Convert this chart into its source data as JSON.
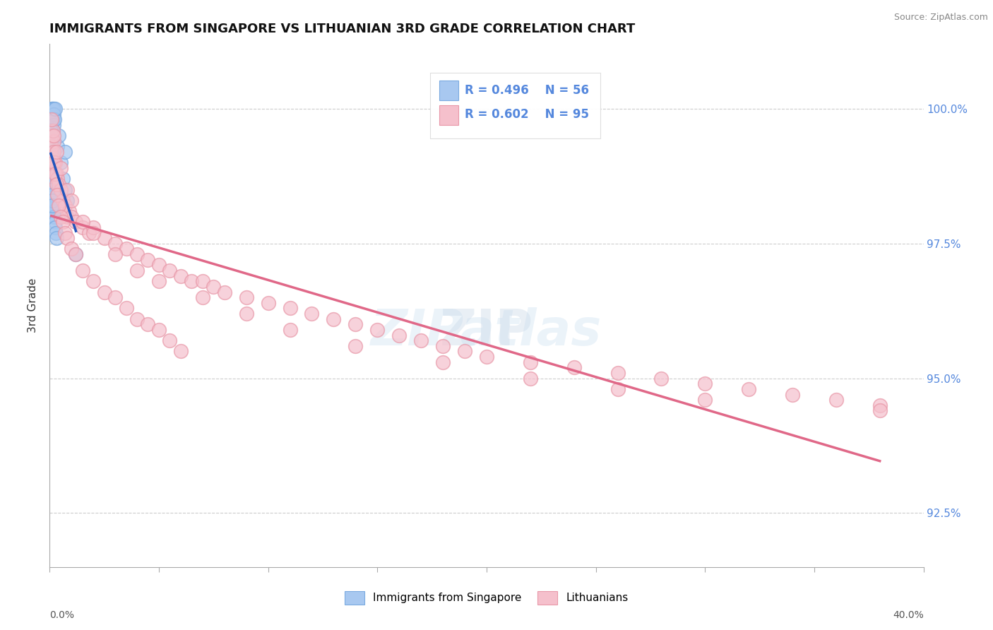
{
  "title": "IMMIGRANTS FROM SINGAPORE VS LITHUANIAN 3RD GRADE CORRELATION CHART",
  "source": "Source: ZipAtlas.com",
  "ylabel": "3rd Grade",
  "legend_label_blue": "Immigrants from Singapore",
  "legend_label_pink": "Lithuanians",
  "r_blue": 0.496,
  "n_blue": 56,
  "r_pink": 0.602,
  "n_pink": 95,
  "x_min": 0.0,
  "x_max": 40.0,
  "y_min": 91.5,
  "y_max": 101.2,
  "y_ticks": [
    92.5,
    95.0,
    97.5,
    100.0
  ],
  "color_blue_fill": "#a8c8f0",
  "color_blue_edge": "#7aaae0",
  "color_pink_fill": "#f5c0cc",
  "color_pink_edge": "#e898a8",
  "color_blue_line": "#2255bb",
  "color_pink_line": "#e06888",
  "tick_color": "#aaaaaa",
  "grid_color": "#cccccc",
  "right_tick_color": "#5588dd",
  "background_color": "#ffffff",
  "blue_x": [
    0.05,
    0.08,
    0.1,
    0.1,
    0.12,
    0.13,
    0.15,
    0.15,
    0.15,
    0.18,
    0.2,
    0.2,
    0.22,
    0.25,
    0.05,
    0.06,
    0.07,
    0.08,
    0.09,
    0.1,
    0.11,
    0.12,
    0.13,
    0.14,
    0.15,
    0.16,
    0.17,
    0.18,
    0.19,
    0.2,
    0.22,
    0.24,
    0.26,
    0.28,
    0.3,
    0.35,
    0.4,
    0.5,
    0.6,
    0.7,
    0.8,
    0.05,
    0.05,
    0.06,
    0.06,
    0.07,
    0.07,
    0.08,
    0.08,
    0.09,
    0.1,
    0.11,
    0.12,
    0.13,
    0.7,
    1.2
  ],
  "blue_y": [
    99.9,
    99.8,
    100.0,
    99.7,
    99.9,
    100.0,
    100.0,
    99.8,
    99.6,
    100.0,
    99.9,
    99.7,
    99.8,
    100.0,
    99.5,
    99.4,
    99.3,
    99.2,
    99.1,
    99.0,
    98.9,
    98.8,
    98.7,
    98.6,
    98.5,
    98.4,
    98.3,
    98.2,
    98.1,
    98.0,
    98.0,
    97.9,
    97.8,
    97.7,
    97.6,
    99.3,
    99.5,
    99.0,
    98.7,
    98.5,
    98.3,
    99.6,
    99.5,
    99.4,
    99.3,
    99.1,
    99.0,
    98.8,
    98.7,
    98.6,
    98.5,
    98.4,
    98.3,
    98.2,
    99.2,
    97.3
  ],
  "pink_x": [
    0.08,
    0.1,
    0.12,
    0.15,
    0.18,
    0.2,
    0.25,
    0.3,
    0.35,
    0.4,
    0.5,
    0.6,
    0.7,
    0.8,
    0.9,
    1.0,
    1.2,
    1.5,
    1.8,
    2.0,
    2.5,
    3.0,
    3.5,
    4.0,
    4.5,
    5.0,
    5.5,
    6.0,
    6.5,
    7.0,
    7.5,
    8.0,
    9.0,
    10.0,
    11.0,
    12.0,
    13.0,
    14.0,
    15.0,
    16.0,
    17.0,
    18.0,
    19.0,
    20.0,
    22.0,
    24.0,
    26.0,
    28.0,
    30.0,
    32.0,
    34.0,
    36.0,
    38.0,
    0.15,
    0.2,
    0.25,
    0.3,
    0.35,
    0.4,
    0.5,
    0.6,
    0.7,
    0.8,
    1.0,
    1.2,
    1.5,
    2.0,
    2.5,
    3.0,
    3.5,
    4.0,
    4.5,
    5.0,
    5.5,
    6.0,
    0.1,
    0.2,
    0.3,
    0.5,
    0.8,
    1.0,
    1.5,
    2.0,
    3.0,
    4.0,
    5.0,
    7.0,
    9.0,
    11.0,
    14.0,
    18.0,
    22.0,
    26.0,
    30.0,
    38.0
  ],
  "pink_y": [
    99.5,
    99.3,
    99.1,
    98.9,
    99.4,
    99.2,
    99.0,
    98.8,
    98.7,
    98.6,
    98.5,
    98.3,
    98.2,
    98.0,
    98.1,
    98.0,
    97.9,
    97.8,
    97.7,
    97.8,
    97.6,
    97.5,
    97.4,
    97.3,
    97.2,
    97.1,
    97.0,
    96.9,
    96.8,
    96.8,
    96.7,
    96.6,
    96.5,
    96.4,
    96.3,
    96.2,
    96.1,
    96.0,
    95.9,
    95.8,
    95.7,
    95.6,
    95.5,
    95.4,
    95.3,
    95.2,
    95.1,
    95.0,
    94.9,
    94.8,
    94.7,
    94.6,
    94.5,
    99.6,
    99.0,
    98.8,
    98.6,
    98.4,
    98.2,
    98.0,
    97.9,
    97.7,
    97.6,
    97.4,
    97.3,
    97.0,
    96.8,
    96.6,
    96.5,
    96.3,
    96.1,
    96.0,
    95.9,
    95.7,
    95.5,
    99.8,
    99.5,
    99.2,
    98.9,
    98.5,
    98.3,
    97.9,
    97.7,
    97.3,
    97.0,
    96.8,
    96.5,
    96.2,
    95.9,
    95.6,
    95.3,
    95.0,
    94.8,
    94.6,
    94.4
  ]
}
